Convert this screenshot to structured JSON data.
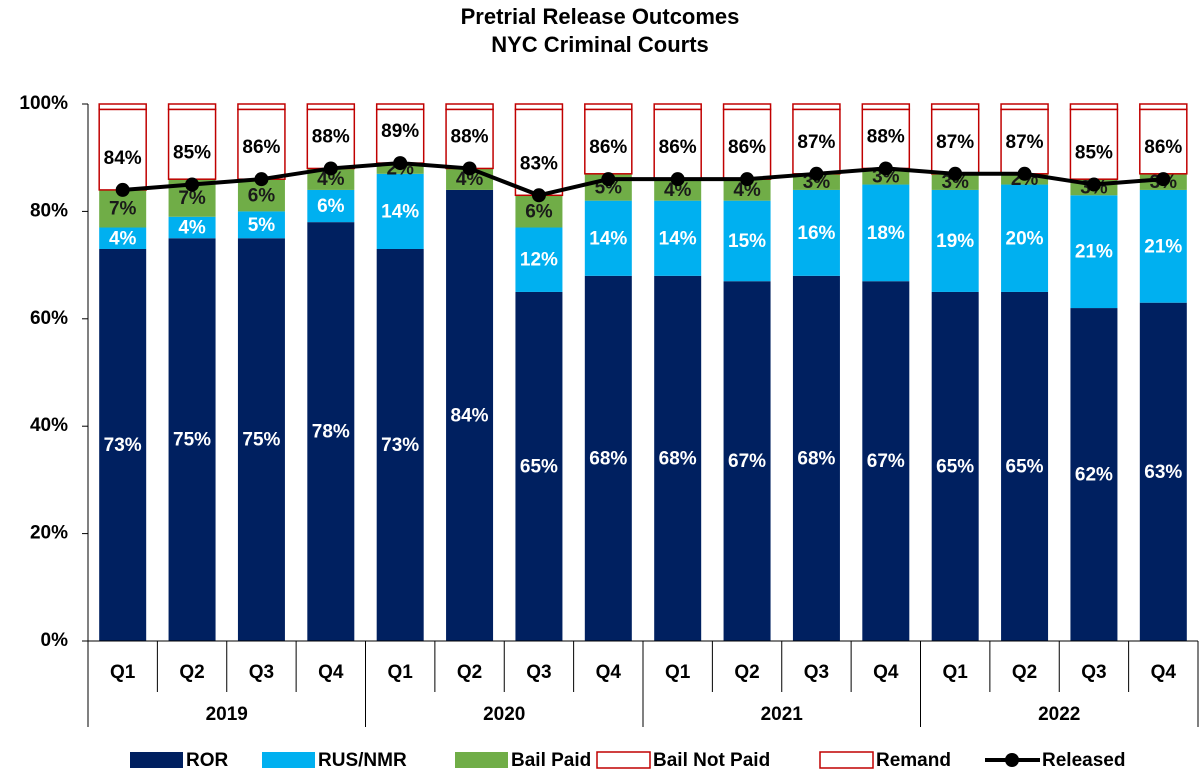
{
  "chart_data": {
    "type": "bar",
    "stacked": true,
    "title": [
      "Pretrial Release Outcomes",
      "NYC Criminal Courts"
    ],
    "categories": [
      "Q1",
      "Q2",
      "Q3",
      "Q4",
      "Q1",
      "Q2",
      "Q3",
      "Q4",
      "Q1",
      "Q2",
      "Q3",
      "Q4",
      "Q1",
      "Q2",
      "Q3",
      "Q4"
    ],
    "groups": [
      "2019",
      "2020",
      "2021",
      "2022"
    ],
    "ylim": [
      0,
      100
    ],
    "yticks": [
      {
        "value": 0,
        "label": "0%"
      },
      {
        "value": 20,
        "label": "20%"
      },
      {
        "value": 40,
        "label": "40%"
      },
      {
        "value": 60,
        "label": "60%"
      },
      {
        "value": 80,
        "label": "80%"
      },
      {
        "value": 100,
        "label": "100%"
      }
    ],
    "series": [
      {
        "name": "ROR",
        "type": "bar",
        "color": "#002060",
        "label_color": "#ffffff",
        "values": [
          73,
          75,
          75,
          78,
          73,
          84,
          65,
          68,
          68,
          67,
          68,
          67,
          65,
          65,
          62,
          63
        ],
        "value_labels": [
          "73%",
          "75%",
          "75%",
          "78%",
          "73%",
          "84%",
          "65%",
          "68%",
          "68%",
          "67%",
          "68%",
          "67%",
          "65%",
          "65%",
          "62%",
          "63%"
        ]
      },
      {
        "name": "RUS/NMR",
        "type": "bar",
        "color": "#00b0f0",
        "label_color": "#ffffff",
        "values": [
          4,
          4,
          5,
          6,
          14,
          0,
          12,
          14,
          14,
          15,
          16,
          18,
          19,
          20,
          21,
          21
        ],
        "value_labels": [
          "4%",
          "4%",
          "5%",
          "6%",
          "14%",
          null,
          "12%",
          "14%",
          "14%",
          "15%",
          "16%",
          "18%",
          "19%",
          "20%",
          "21%",
          "21%"
        ]
      },
      {
        "name": "Bail Paid",
        "type": "bar",
        "color": "#70ad47",
        "label_color": "#1a1a1a",
        "values": [
          7,
          7,
          6,
          4,
          2,
          4,
          6,
          5,
          4,
          4,
          3,
          3,
          3,
          2,
          3,
          3
        ],
        "value_labels": [
          "7%",
          "7%",
          "6%",
          "4%",
          "2%",
          "4%",
          "6%",
          "5%",
          "4%",
          "4%",
          "3%",
          "3%",
          "3%",
          "2%",
          "3%",
          "3%"
        ]
      },
      {
        "name": "Bail Not Paid",
        "type": "bar",
        "outline": true,
        "color": "#c00000",
        "values": [
          15,
          13,
          13,
          11,
          10,
          11,
          16,
          12,
          13,
          13,
          12,
          11,
          12,
          12,
          13,
          12
        ]
      },
      {
        "name": "Remand",
        "type": "bar",
        "outline": true,
        "color": "#c00000",
        "values": [
          1,
          1,
          1,
          1,
          1,
          1,
          1,
          1,
          1,
          1,
          1,
          1,
          1,
          1,
          1,
          1
        ]
      },
      {
        "name": "Released",
        "type": "line",
        "color": "#000000",
        "values": [
          84,
          85,
          86,
          88,
          89,
          88,
          83,
          86,
          86,
          86,
          87,
          88,
          87,
          87,
          85,
          86
        ],
        "value_labels": [
          "84%",
          "85%",
          "86%",
          "88%",
          "89%",
          "88%",
          "83%",
          "86%",
          "86%",
          "86%",
          "87%",
          "88%",
          "87%",
          "87%",
          "85%",
          "86%"
        ]
      }
    ]
  }
}
